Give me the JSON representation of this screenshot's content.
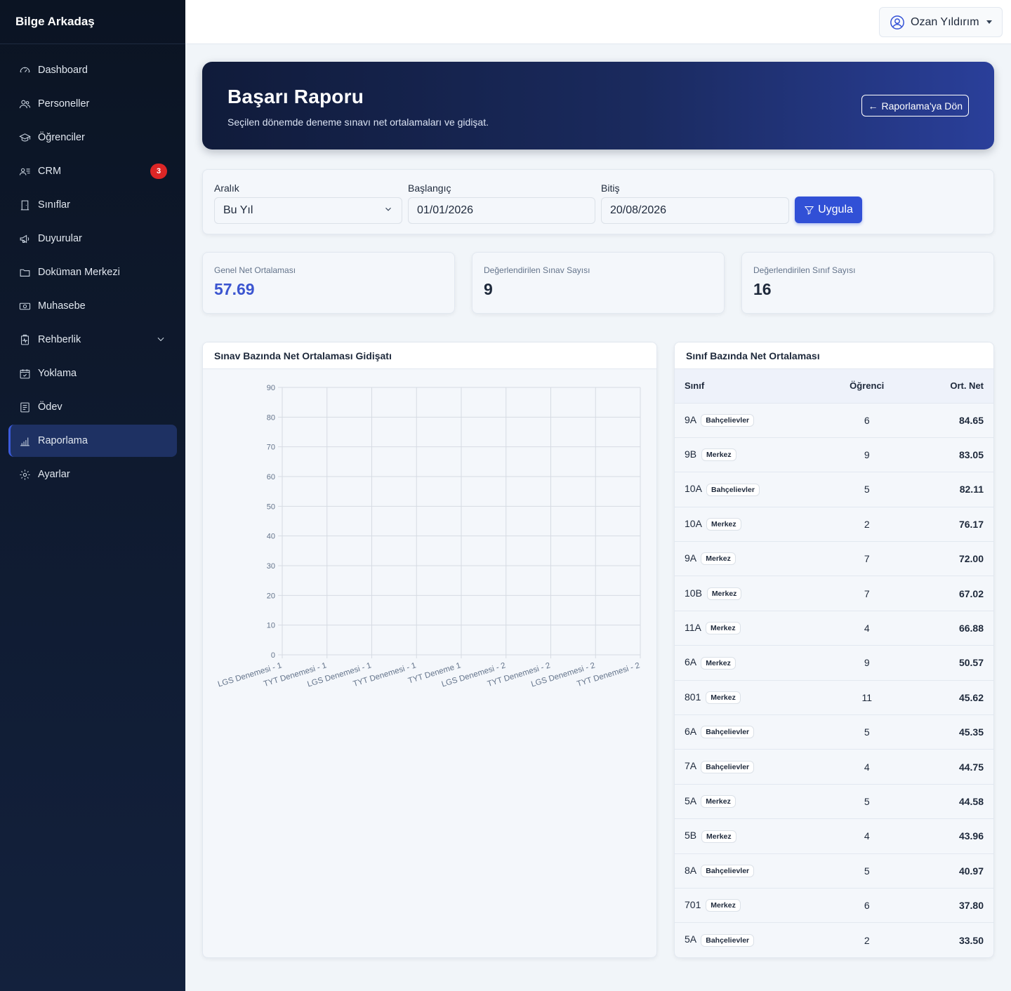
{
  "app": {
    "brand": "Bilge Arkadaş"
  },
  "sidebar": {
    "items": [
      {
        "label": "Dashboard",
        "icon": "dashboard-icon"
      },
      {
        "label": "Personeller",
        "icon": "users-icon"
      },
      {
        "label": "Öğrenciler",
        "icon": "graduation-cap-icon"
      },
      {
        "label": "CRM",
        "icon": "contact-card-icon",
        "badge": "3"
      },
      {
        "label": "Sınıflar",
        "icon": "door-icon"
      },
      {
        "label": "Duyurular",
        "icon": "megaphone-icon"
      },
      {
        "label": "Doküman Merkezi",
        "icon": "folder-icon"
      },
      {
        "label": "Muhasebe",
        "icon": "cash-icon"
      },
      {
        "label": "Rehberlik",
        "icon": "clipboard-pulse-icon"
      },
      {
        "label": "Yoklama",
        "icon": "calendar-check-icon"
      },
      {
        "label": "Ödev",
        "icon": "list-icon"
      },
      {
        "label": "Raporlama",
        "icon": "bar-chart-icon",
        "active": true
      },
      {
        "label": "Ayarlar",
        "icon": "gear-icon"
      }
    ]
  },
  "topbar": {
    "user_name": "Ozan Yıldırım"
  },
  "hero": {
    "title": "Başarı Raporu",
    "subtitle": "Seçilen dönemde deneme sınavı net ortalamaları ve gidişat.",
    "back_label": "Raporlama'ya Dön"
  },
  "filters": {
    "range_label": "Aralık",
    "range_value": "Bu Yıl",
    "start_label": "Başlangıç",
    "start_value": "01/01/2026",
    "end_label": "Bitiş",
    "end_value": "20/08/2026",
    "apply_label": "Uygula"
  },
  "stats": [
    {
      "label": "Genel Net Ortalaması",
      "value": "57.69"
    },
    {
      "label": "Değerlendirilen Sınav Sayısı",
      "value": "9"
    },
    {
      "label": "Değerlendirilen Sınıf Sayısı",
      "value": "16"
    }
  ],
  "chart_panel": {
    "title": "Sınav Bazında Net Ortalaması Gidişatı"
  },
  "chart_data": {
    "type": "line",
    "categories": [
      "LGS Denemesi - 1",
      "TYT Denemesi - 1",
      "LGS Denemesi - 1",
      "TYT Denemesi - 1",
      "TYT Deneme 1",
      "LGS Denemesi - 2",
      "TYT Denemesi - 2",
      "LGS Denemesi - 2",
      "TYT Denemesi - 2"
    ],
    "series": [],
    "ylim": [
      0,
      90
    ],
    "yticks": [
      0,
      10,
      20,
      30,
      40,
      50,
      60,
      70,
      80,
      90
    ],
    "grid": true
  },
  "table_panel": {
    "title": "Sınıf Bazında Net Ortalaması",
    "headers": [
      "Sınıf",
      "Öğrenci",
      "Ort. Net"
    ],
    "rows": [
      {
        "cls": "9A",
        "branch": "Bahçelievler",
        "students": "6",
        "avg": "84.65"
      },
      {
        "cls": "9B",
        "branch": "Merkez",
        "students": "9",
        "avg": "83.05"
      },
      {
        "cls": "10A",
        "branch": "Bahçelievler",
        "students": "5",
        "avg": "82.11"
      },
      {
        "cls": "10A",
        "branch": "Merkez",
        "students": "2",
        "avg": "76.17"
      },
      {
        "cls": "9A",
        "branch": "Merkez",
        "students": "7",
        "avg": "72.00"
      },
      {
        "cls": "10B",
        "branch": "Merkez",
        "students": "7",
        "avg": "67.02"
      },
      {
        "cls": "11A",
        "branch": "Merkez",
        "students": "4",
        "avg": "66.88"
      },
      {
        "cls": "6A",
        "branch": "Merkez",
        "students": "9",
        "avg": "50.57"
      },
      {
        "cls": "801",
        "branch": "Merkez",
        "students": "11",
        "avg": "45.62"
      },
      {
        "cls": "6A",
        "branch": "Bahçelievler",
        "students": "5",
        "avg": "45.35"
      },
      {
        "cls": "7A",
        "branch": "Bahçelievler",
        "students": "4",
        "avg": "44.75"
      },
      {
        "cls": "5A",
        "branch": "Merkez",
        "students": "5",
        "avg": "44.58"
      },
      {
        "cls": "5B",
        "branch": "Merkez",
        "students": "4",
        "avg": "43.96"
      },
      {
        "cls": "8A",
        "branch": "Bahçelievler",
        "students": "5",
        "avg": "40.97"
      },
      {
        "cls": "701",
        "branch": "Merkez",
        "students": "6",
        "avg": "37.80"
      },
      {
        "cls": "5A",
        "branch": "Bahçelievler",
        "students": "2",
        "avg": "33.50"
      }
    ]
  },
  "colors": {
    "accent": "#3150d6",
    "sidebar_bg": "#0b1423",
    "badge": "#dc2626",
    "stat_value": "#3b55d0"
  }
}
